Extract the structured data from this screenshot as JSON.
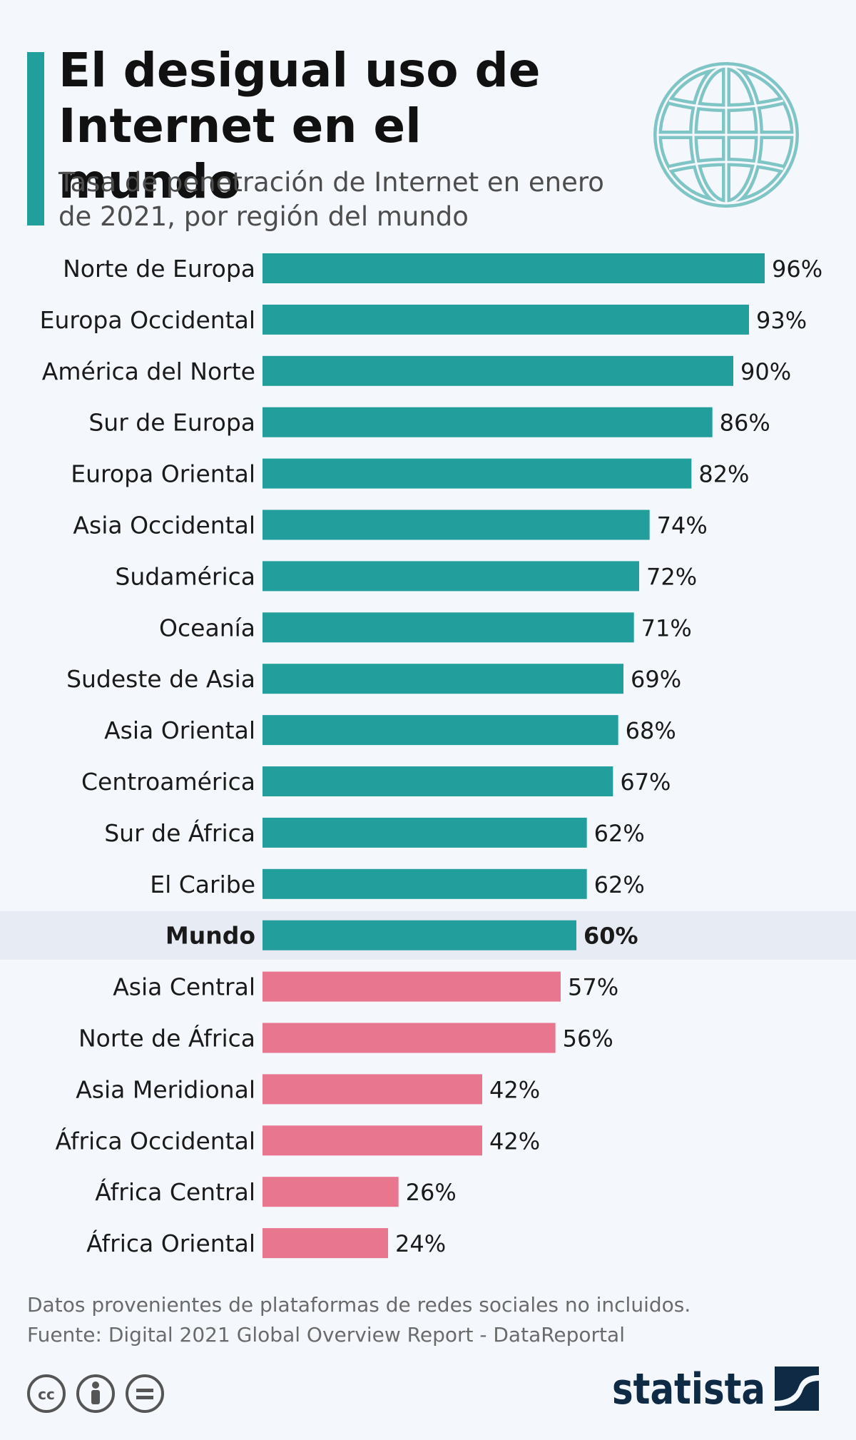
{
  "header": {
    "title": "El desigual uso de\nInternet en el mundo",
    "subtitle": "Tasa de penetración de Internet en enero\nde 2021, por región del mundo"
  },
  "chart_data": {
    "type": "bar",
    "orientation": "horizontal",
    "categories": [
      "Norte de Europa",
      "Europa Occidental",
      "América del Norte",
      "Sur de Europa",
      "Europa Oriental",
      "Asia Occidental",
      "Sudamérica",
      "Oceanía",
      "Sudeste de Asia",
      "Asia Oriental",
      "Centroamérica",
      "Sur de África",
      "El Caribe",
      "Mundo",
      "Asia Central",
      "Norte de África",
      "Asia Meridional",
      "África Occidental",
      "África Central",
      "África Oriental"
    ],
    "values": [
      96,
      93,
      90,
      86,
      82,
      74,
      72,
      71,
      69,
      68,
      67,
      62,
      62,
      60,
      57,
      56,
      42,
      42,
      26,
      24
    ],
    "value_suffix": "%",
    "highlight_category": "Mundo",
    "xlim": [
      0,
      100
    ],
    "colors": {
      "above_average": "#229e9c",
      "below_average": "#e8768f",
      "highlight_band": "#e7ecf4"
    },
    "grid": false,
    "legend": "none"
  },
  "footer": {
    "note": "Datos provenientes de plataformas de redes sociales no incluidos.",
    "source": "Fuente: Digital 2021 Global Overview Report - DataReportal",
    "brand": "statista",
    "license_icons": [
      "cc-icon",
      "by-icon",
      "nd-icon"
    ]
  }
}
